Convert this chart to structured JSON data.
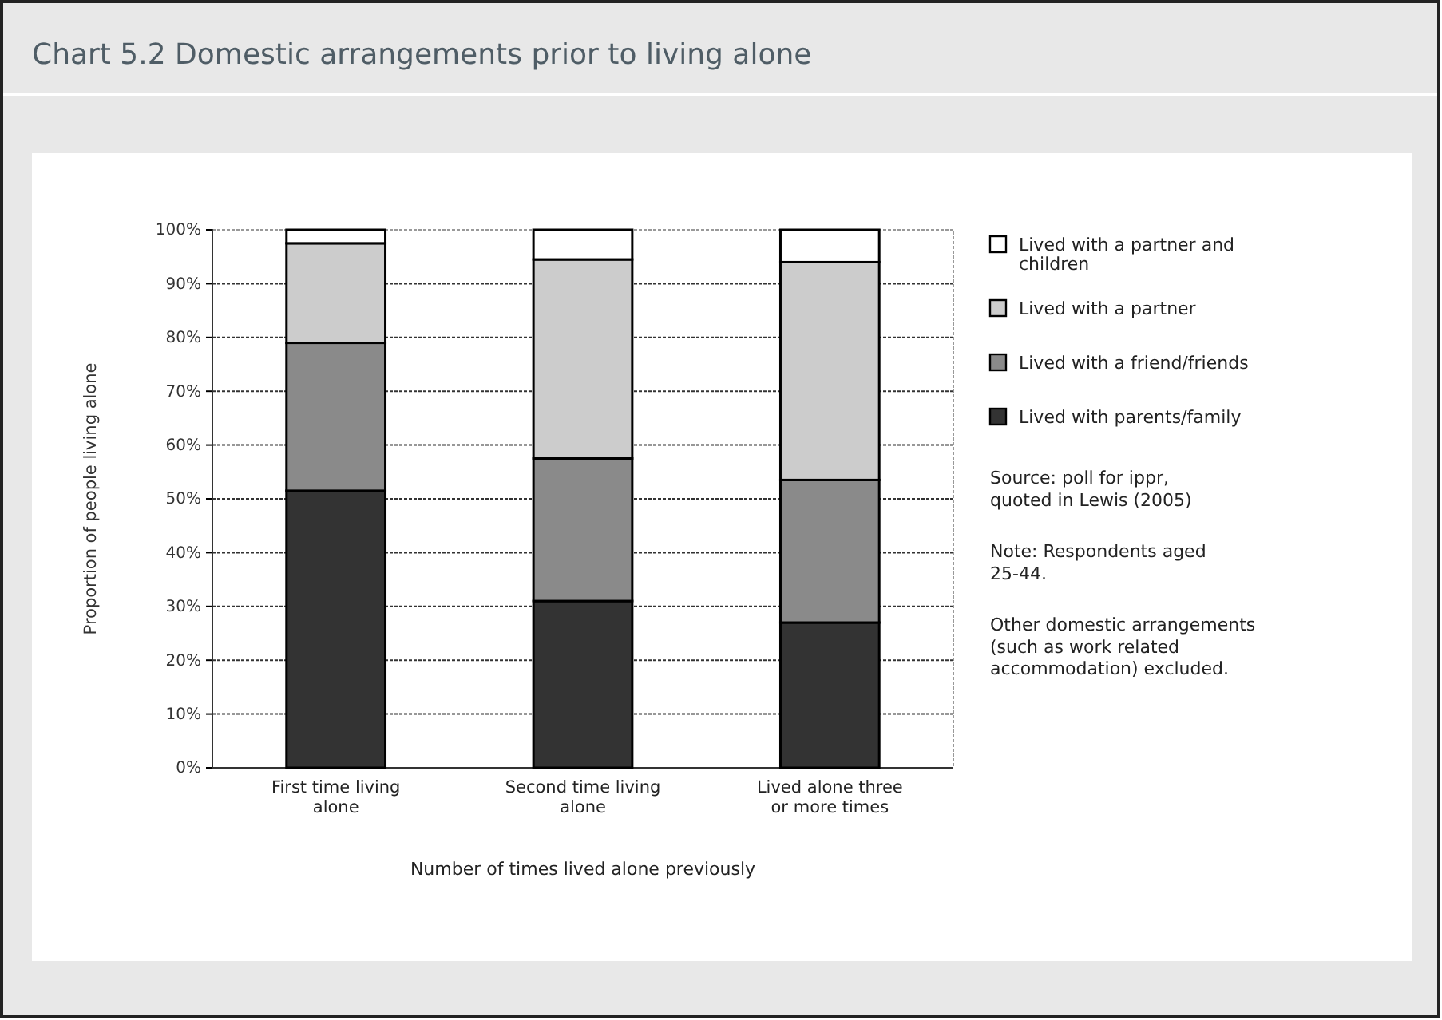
{
  "chart_data": {
    "type": "bar",
    "title": "Chart 5.2 Domestic arrangements prior to living alone",
    "xlabel": "Number of times lived alone previously",
    "ylabel": "Proportion of people living alone",
    "categories": [
      "First time living alone",
      "Second time living alone",
      "Lived alone three or more times"
    ],
    "stacked": true,
    "series": [
      {
        "name": "Lived with parents/family",
        "color": "#333333",
        "values": [
          51.5,
          31,
          27
        ]
      },
      {
        "name": "Lived with a friend/friends",
        "color": "#8a8a8a",
        "values": [
          27.5,
          26.5,
          26.5
        ]
      },
      {
        "name": "Lived with a partner",
        "color": "#cccccc",
        "values": [
          18.5,
          37,
          40.5
        ]
      },
      {
        "name": "Lived with a partner and children",
        "color": "#ffffff",
        "values": [
          2.5,
          5.5,
          6
        ]
      }
    ],
    "ylim": [
      0,
      100
    ],
    "yticks": [
      {
        "value": 0,
        "label": "0%"
      },
      {
        "value": 10,
        "label": "10%"
      },
      {
        "value": 20,
        "label": "20%"
      },
      {
        "value": 30,
        "label": "30%"
      },
      {
        "value": 40,
        "label": "40%"
      },
      {
        "value": 50,
        "label": "50%"
      },
      {
        "value": 60,
        "label": "60%"
      },
      {
        "value": 70,
        "label": "70%"
      },
      {
        "value": 80,
        "label": "80%"
      },
      {
        "value": 90,
        "label": "90%"
      },
      {
        "value": 100,
        "label": "100%"
      }
    ],
    "grid": "y",
    "legend": "right",
    "annotations": [
      "Source: poll for ippr, quoted in Lewis (2005)",
      "Note: Respondents aged 25-44.",
      "Other domestic arrangements (such as work related accommodation) excluded."
    ]
  }
}
